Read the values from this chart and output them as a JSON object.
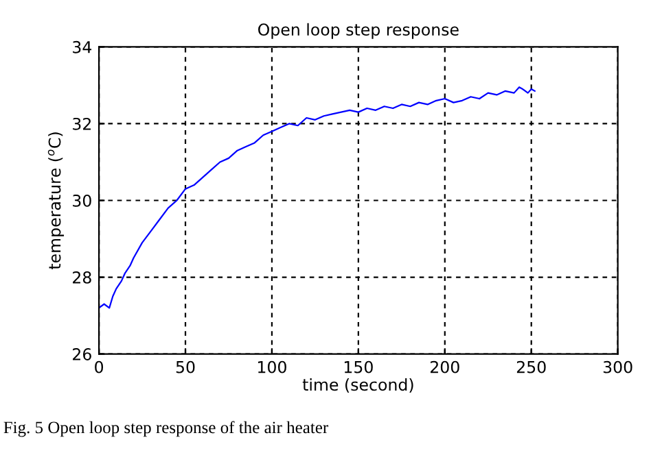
{
  "chart_data": {
    "type": "line",
    "title": "Open loop step response",
    "xlabel": "time (second)",
    "ylabel": "temperature ($^{o}$C)",
    "annotations": [
      "Fig. 5 Open loop step response of the air heater"
    ],
    "series": [
      {
        "color": "#0000ff",
        "x": [
          0,
          3,
          6,
          8,
          10,
          13,
          15,
          18,
          20,
          25,
          30,
          35,
          40,
          45,
          50,
          55,
          60,
          65,
          70,
          75,
          80,
          85,
          90,
          95,
          100,
          105,
          110,
          115,
          120,
          125,
          130,
          135,
          140,
          145,
          150,
          155,
          160,
          165,
          170,
          175,
          180,
          185,
          190,
          195,
          200,
          205,
          210,
          215,
          220,
          225,
          230,
          235,
          240,
          243,
          245,
          248,
          250,
          252
        ],
        "values": [
          27.2,
          27.3,
          27.2,
          27.5,
          27.7,
          27.9,
          28.1,
          28.3,
          28.5,
          28.9,
          29.2,
          29.5,
          29.8,
          30.0,
          30.3,
          30.4,
          30.6,
          30.8,
          31.0,
          31.1,
          31.3,
          31.4,
          31.5,
          31.7,
          31.8,
          31.9,
          32.0,
          31.95,
          32.15,
          32.1,
          32.2,
          32.25,
          32.3,
          32.35,
          32.3,
          32.4,
          32.35,
          32.45,
          32.4,
          32.5,
          32.45,
          32.55,
          32.5,
          32.6,
          32.65,
          32.55,
          32.6,
          32.7,
          32.65,
          32.8,
          32.75,
          32.85,
          32.8,
          32.95,
          32.9,
          32.8,
          32.9,
          32.85
        ]
      }
    ],
    "xlim": [
      0,
      300
    ],
    "ylim": [
      26,
      34
    ],
    "xticks": [
      0,
      50,
      100,
      150,
      200,
      250,
      300
    ],
    "yticks": [
      26,
      28,
      30,
      32,
      34
    ],
    "grid": true,
    "line_style": "solid",
    "marker": "none",
    "legend": false
  }
}
